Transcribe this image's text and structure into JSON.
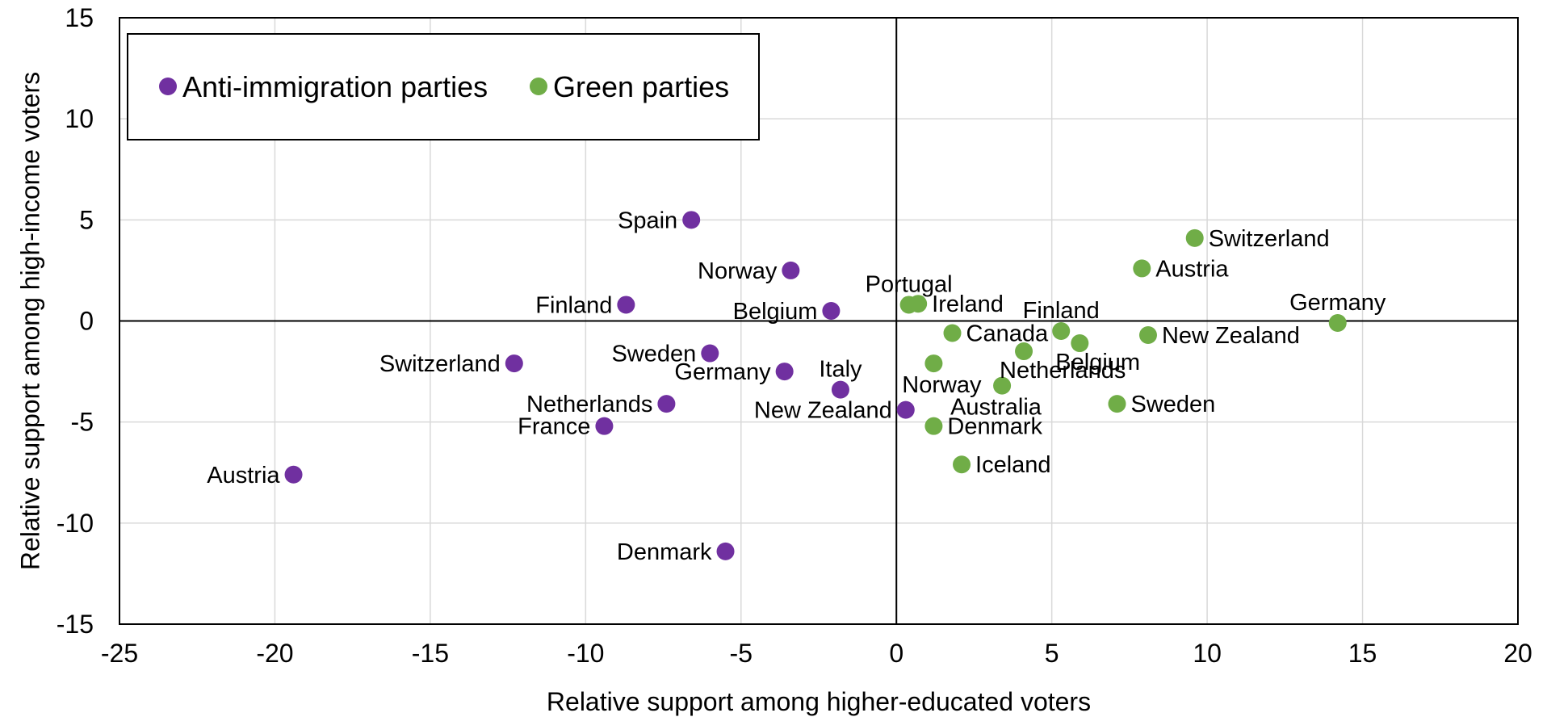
{
  "chart_data": {
    "type": "scatter",
    "title": "",
    "xlabel": "Relative support among higher-educated voters",
    "ylabel": "Relative support among high-income voters",
    "xlim": [
      -25,
      20
    ],
    "ylim": [
      -15,
      15
    ],
    "xticks": [
      -25,
      -20,
      -15,
      -10,
      -5,
      0,
      5,
      10,
      15,
      20
    ],
    "yticks": [
      -15,
      -10,
      -5,
      0,
      5,
      10,
      15
    ],
    "grid": true,
    "legend": {
      "placement": "top-left",
      "entries": [
        "Anti-immigration parties",
        "Green parties"
      ]
    },
    "series": [
      {
        "name": "Anti-immigration parties",
        "color": "#7030a0",
        "points": [
          {
            "label": "Spain",
            "x": -6.6,
            "y": 5.0,
            "label_side": "left"
          },
          {
            "label": "Norway",
            "x": -3.4,
            "y": 2.5,
            "label_side": "left"
          },
          {
            "label": "Finland",
            "x": -8.7,
            "y": 0.8,
            "label_side": "left"
          },
          {
            "label": "Belgium",
            "x": -2.1,
            "y": 0.5,
            "label_side": "left"
          },
          {
            "label": "Switzerland",
            "x": -12.3,
            "y": -2.1,
            "label_side": "left"
          },
          {
            "label": "Sweden",
            "x": -6.0,
            "y": -1.6,
            "label_side": "left"
          },
          {
            "label": "Germany",
            "x": -3.6,
            "y": -2.5,
            "label_side": "left"
          },
          {
            "label": "Italy",
            "x": -1.8,
            "y": -3.4,
            "label_side": "above"
          },
          {
            "label": "Netherlands",
            "x": -7.4,
            "y": -4.1,
            "label_side": "left"
          },
          {
            "label": "France",
            "x": -9.4,
            "y": -5.2,
            "label_side": "left"
          },
          {
            "label": "New Zealand",
            "x": 0.3,
            "y": -4.4,
            "label_side": "left"
          },
          {
            "label": "Austria",
            "x": -19.4,
            "y": -7.6,
            "label_side": "left"
          },
          {
            "label": "Denmark",
            "x": -5.5,
            "y": -11.4,
            "label_side": "left"
          }
        ]
      },
      {
        "name": "Green parties",
        "color": "#70ad47",
        "points": [
          {
            "label": "Switzerland",
            "x": 9.6,
            "y": 4.1,
            "label_side": "right"
          },
          {
            "label": "Austria",
            "x": 7.9,
            "y": 2.6,
            "label_side": "right"
          },
          {
            "label": "Portugal",
            "x": 0.4,
            "y": 0.8,
            "label_side": "above"
          },
          {
            "label": "Ireland",
            "x": 0.7,
            "y": 0.85,
            "label_side": "right"
          },
          {
            "label": "Germany",
            "x": 14.2,
            "y": -0.1,
            "label_side": "above"
          },
          {
            "label": "Finland",
            "x": 5.3,
            "y": -0.5,
            "label_side": "above"
          },
          {
            "label": "Canada",
            "x": 1.8,
            "y": -0.6,
            "label_side": "right"
          },
          {
            "label": "New Zealand",
            "x": 8.1,
            "y": -0.7,
            "label_side": "right"
          },
          {
            "label": "Belgium",
            "x": 5.9,
            "y": -1.1,
            "label_side": "below-right"
          },
          {
            "label": "Netherlands",
            "x": 4.1,
            "y": -1.5,
            "label_side": "below-right"
          },
          {
            "label": "Norway",
            "x": 1.2,
            "y": -2.1,
            "label_side": "below"
          },
          {
            "label": "Australia",
            "x": 3.4,
            "y": -3.2,
            "label_side": "below-left"
          },
          {
            "label": "Sweden",
            "x": 7.1,
            "y": -4.1,
            "label_side": "right"
          },
          {
            "label": "Denmark",
            "x": 1.2,
            "y": -5.2,
            "label_side": "right"
          },
          {
            "label": "Iceland",
            "x": 2.1,
            "y": -7.1,
            "label_side": "right"
          }
        ]
      }
    ]
  }
}
